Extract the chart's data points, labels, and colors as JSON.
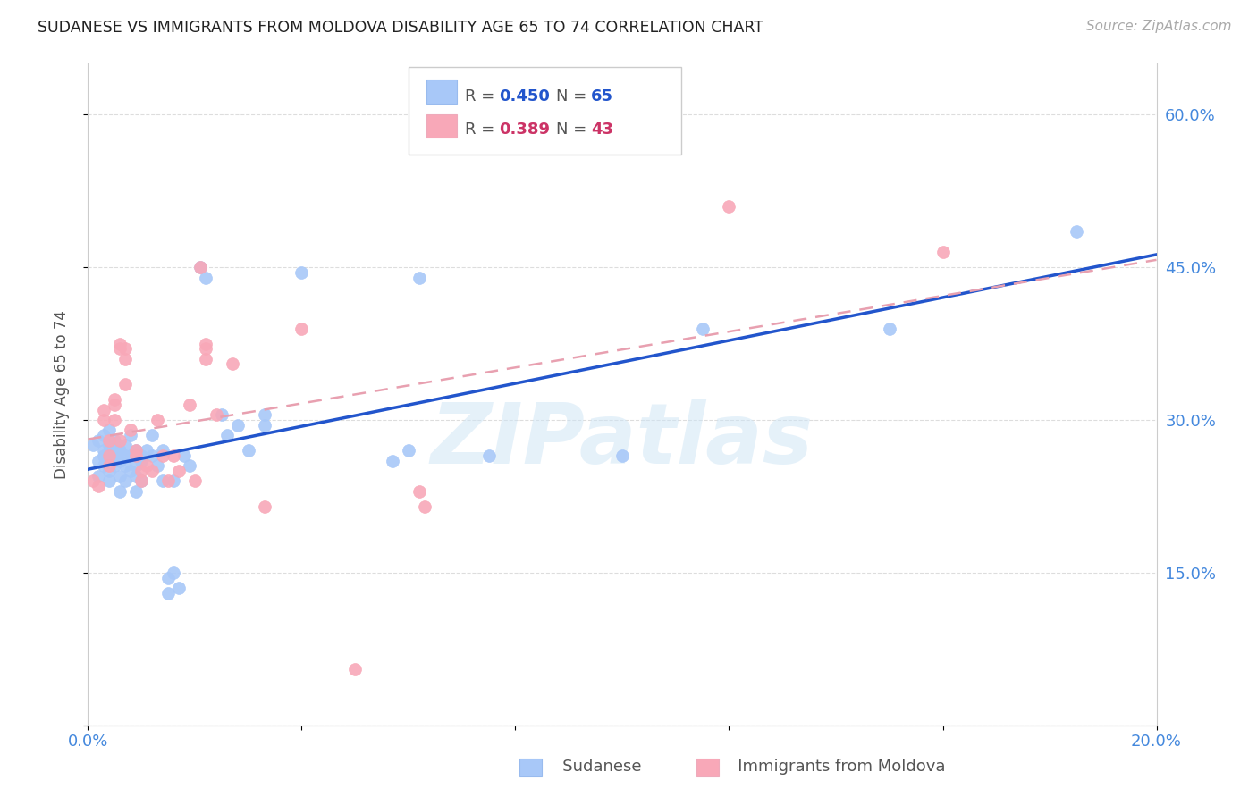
{
  "title": "SUDANESE VS IMMIGRANTS FROM MOLDOVA DISABILITY AGE 65 TO 74 CORRELATION CHART",
  "source": "Source: ZipAtlas.com",
  "ylabel_label": "Disability Age 65 to 74",
  "x_min": 0.0,
  "x_max": 0.2,
  "y_min": 0.0,
  "y_max": 0.65,
  "x_ticks": [
    0.0,
    0.04,
    0.08,
    0.12,
    0.16,
    0.2
  ],
  "x_tick_labels": [
    "0.0%",
    "",
    "",
    "",
    "",
    "20.0%"
  ],
  "y_ticks": [
    0.0,
    0.15,
    0.3,
    0.45,
    0.6
  ],
  "y_tick_labels_right": [
    "",
    "15.0%",
    "30.0%",
    "45.0%",
    "60.0%"
  ],
  "sudanese_color": "#a8c8f8",
  "moldova_color": "#f8a8b8",
  "trendline_sudanese_color": "#2255cc",
  "trendline_moldova_color": "#e8a0b0",
  "background_color": "#ffffff",
  "grid_color": "#dddddd",
  "axis_color": "#4488dd",
  "watermark": "ZIPatlas",
  "R_sudanese": 0.45,
  "N_sudanese": 65,
  "R_moldova": 0.389,
  "N_moldova": 43,
  "sudanese_points": [
    [
      0.001,
      0.275
    ],
    [
      0.002,
      0.26
    ],
    [
      0.002,
      0.28
    ],
    [
      0.002,
      0.245
    ],
    [
      0.003,
      0.265
    ],
    [
      0.003,
      0.27
    ],
    [
      0.003,
      0.255
    ],
    [
      0.003,
      0.285
    ],
    [
      0.004,
      0.26
    ],
    [
      0.004,
      0.275
    ],
    [
      0.004,
      0.25
    ],
    [
      0.004,
      0.24
    ],
    [
      0.004,
      0.29
    ],
    [
      0.005,
      0.265
    ],
    [
      0.005,
      0.255
    ],
    [
      0.005,
      0.27
    ],
    [
      0.005,
      0.28
    ],
    [
      0.006,
      0.26
    ],
    [
      0.006,
      0.27
    ],
    [
      0.006,
      0.245
    ],
    [
      0.006,
      0.23
    ],
    [
      0.007,
      0.265
    ],
    [
      0.007,
      0.275
    ],
    [
      0.007,
      0.255
    ],
    [
      0.007,
      0.24
    ],
    [
      0.008,
      0.285
    ],
    [
      0.008,
      0.265
    ],
    [
      0.008,
      0.25
    ],
    [
      0.009,
      0.27
    ],
    [
      0.009,
      0.255
    ],
    [
      0.009,
      0.245
    ],
    [
      0.009,
      0.23
    ],
    [
      0.01,
      0.265
    ],
    [
      0.01,
      0.26
    ],
    [
      0.01,
      0.24
    ],
    [
      0.011,
      0.27
    ],
    [
      0.012,
      0.285
    ],
    [
      0.012,
      0.265
    ],
    [
      0.013,
      0.255
    ],
    [
      0.014,
      0.27
    ],
    [
      0.014,
      0.24
    ],
    [
      0.015,
      0.145
    ],
    [
      0.015,
      0.13
    ],
    [
      0.016,
      0.15
    ],
    [
      0.016,
      0.24
    ],
    [
      0.017,
      0.135
    ],
    [
      0.018,
      0.265
    ],
    [
      0.019,
      0.255
    ],
    [
      0.021,
      0.45
    ],
    [
      0.022,
      0.44
    ],
    [
      0.025,
      0.305
    ],
    [
      0.026,
      0.285
    ],
    [
      0.028,
      0.295
    ],
    [
      0.03,
      0.27
    ],
    [
      0.033,
      0.305
    ],
    [
      0.033,
      0.295
    ],
    [
      0.04,
      0.445
    ],
    [
      0.057,
      0.26
    ],
    [
      0.06,
      0.27
    ],
    [
      0.062,
      0.44
    ],
    [
      0.075,
      0.265
    ],
    [
      0.1,
      0.265
    ],
    [
      0.115,
      0.39
    ],
    [
      0.15,
      0.39
    ],
    [
      0.185,
      0.485
    ]
  ],
  "moldova_points": [
    [
      0.001,
      0.24
    ],
    [
      0.002,
      0.235
    ],
    [
      0.003,
      0.3
    ],
    [
      0.003,
      0.31
    ],
    [
      0.004,
      0.28
    ],
    [
      0.004,
      0.265
    ],
    [
      0.004,
      0.255
    ],
    [
      0.005,
      0.32
    ],
    [
      0.005,
      0.315
    ],
    [
      0.005,
      0.3
    ],
    [
      0.006,
      0.375
    ],
    [
      0.006,
      0.37
    ],
    [
      0.006,
      0.28
    ],
    [
      0.007,
      0.37
    ],
    [
      0.007,
      0.36
    ],
    [
      0.007,
      0.335
    ],
    [
      0.008,
      0.29
    ],
    [
      0.009,
      0.27
    ],
    [
      0.009,
      0.265
    ],
    [
      0.01,
      0.25
    ],
    [
      0.01,
      0.24
    ],
    [
      0.011,
      0.255
    ],
    [
      0.012,
      0.25
    ],
    [
      0.013,
      0.3
    ],
    [
      0.014,
      0.265
    ],
    [
      0.015,
      0.24
    ],
    [
      0.016,
      0.265
    ],
    [
      0.017,
      0.25
    ],
    [
      0.019,
      0.315
    ],
    [
      0.02,
      0.24
    ],
    [
      0.021,
      0.45
    ],
    [
      0.022,
      0.375
    ],
    [
      0.022,
      0.37
    ],
    [
      0.022,
      0.36
    ],
    [
      0.024,
      0.305
    ],
    [
      0.027,
      0.355
    ],
    [
      0.033,
      0.215
    ],
    [
      0.04,
      0.39
    ],
    [
      0.05,
      0.055
    ],
    [
      0.062,
      0.23
    ],
    [
      0.063,
      0.215
    ],
    [
      0.12,
      0.51
    ],
    [
      0.16,
      0.465
    ]
  ]
}
